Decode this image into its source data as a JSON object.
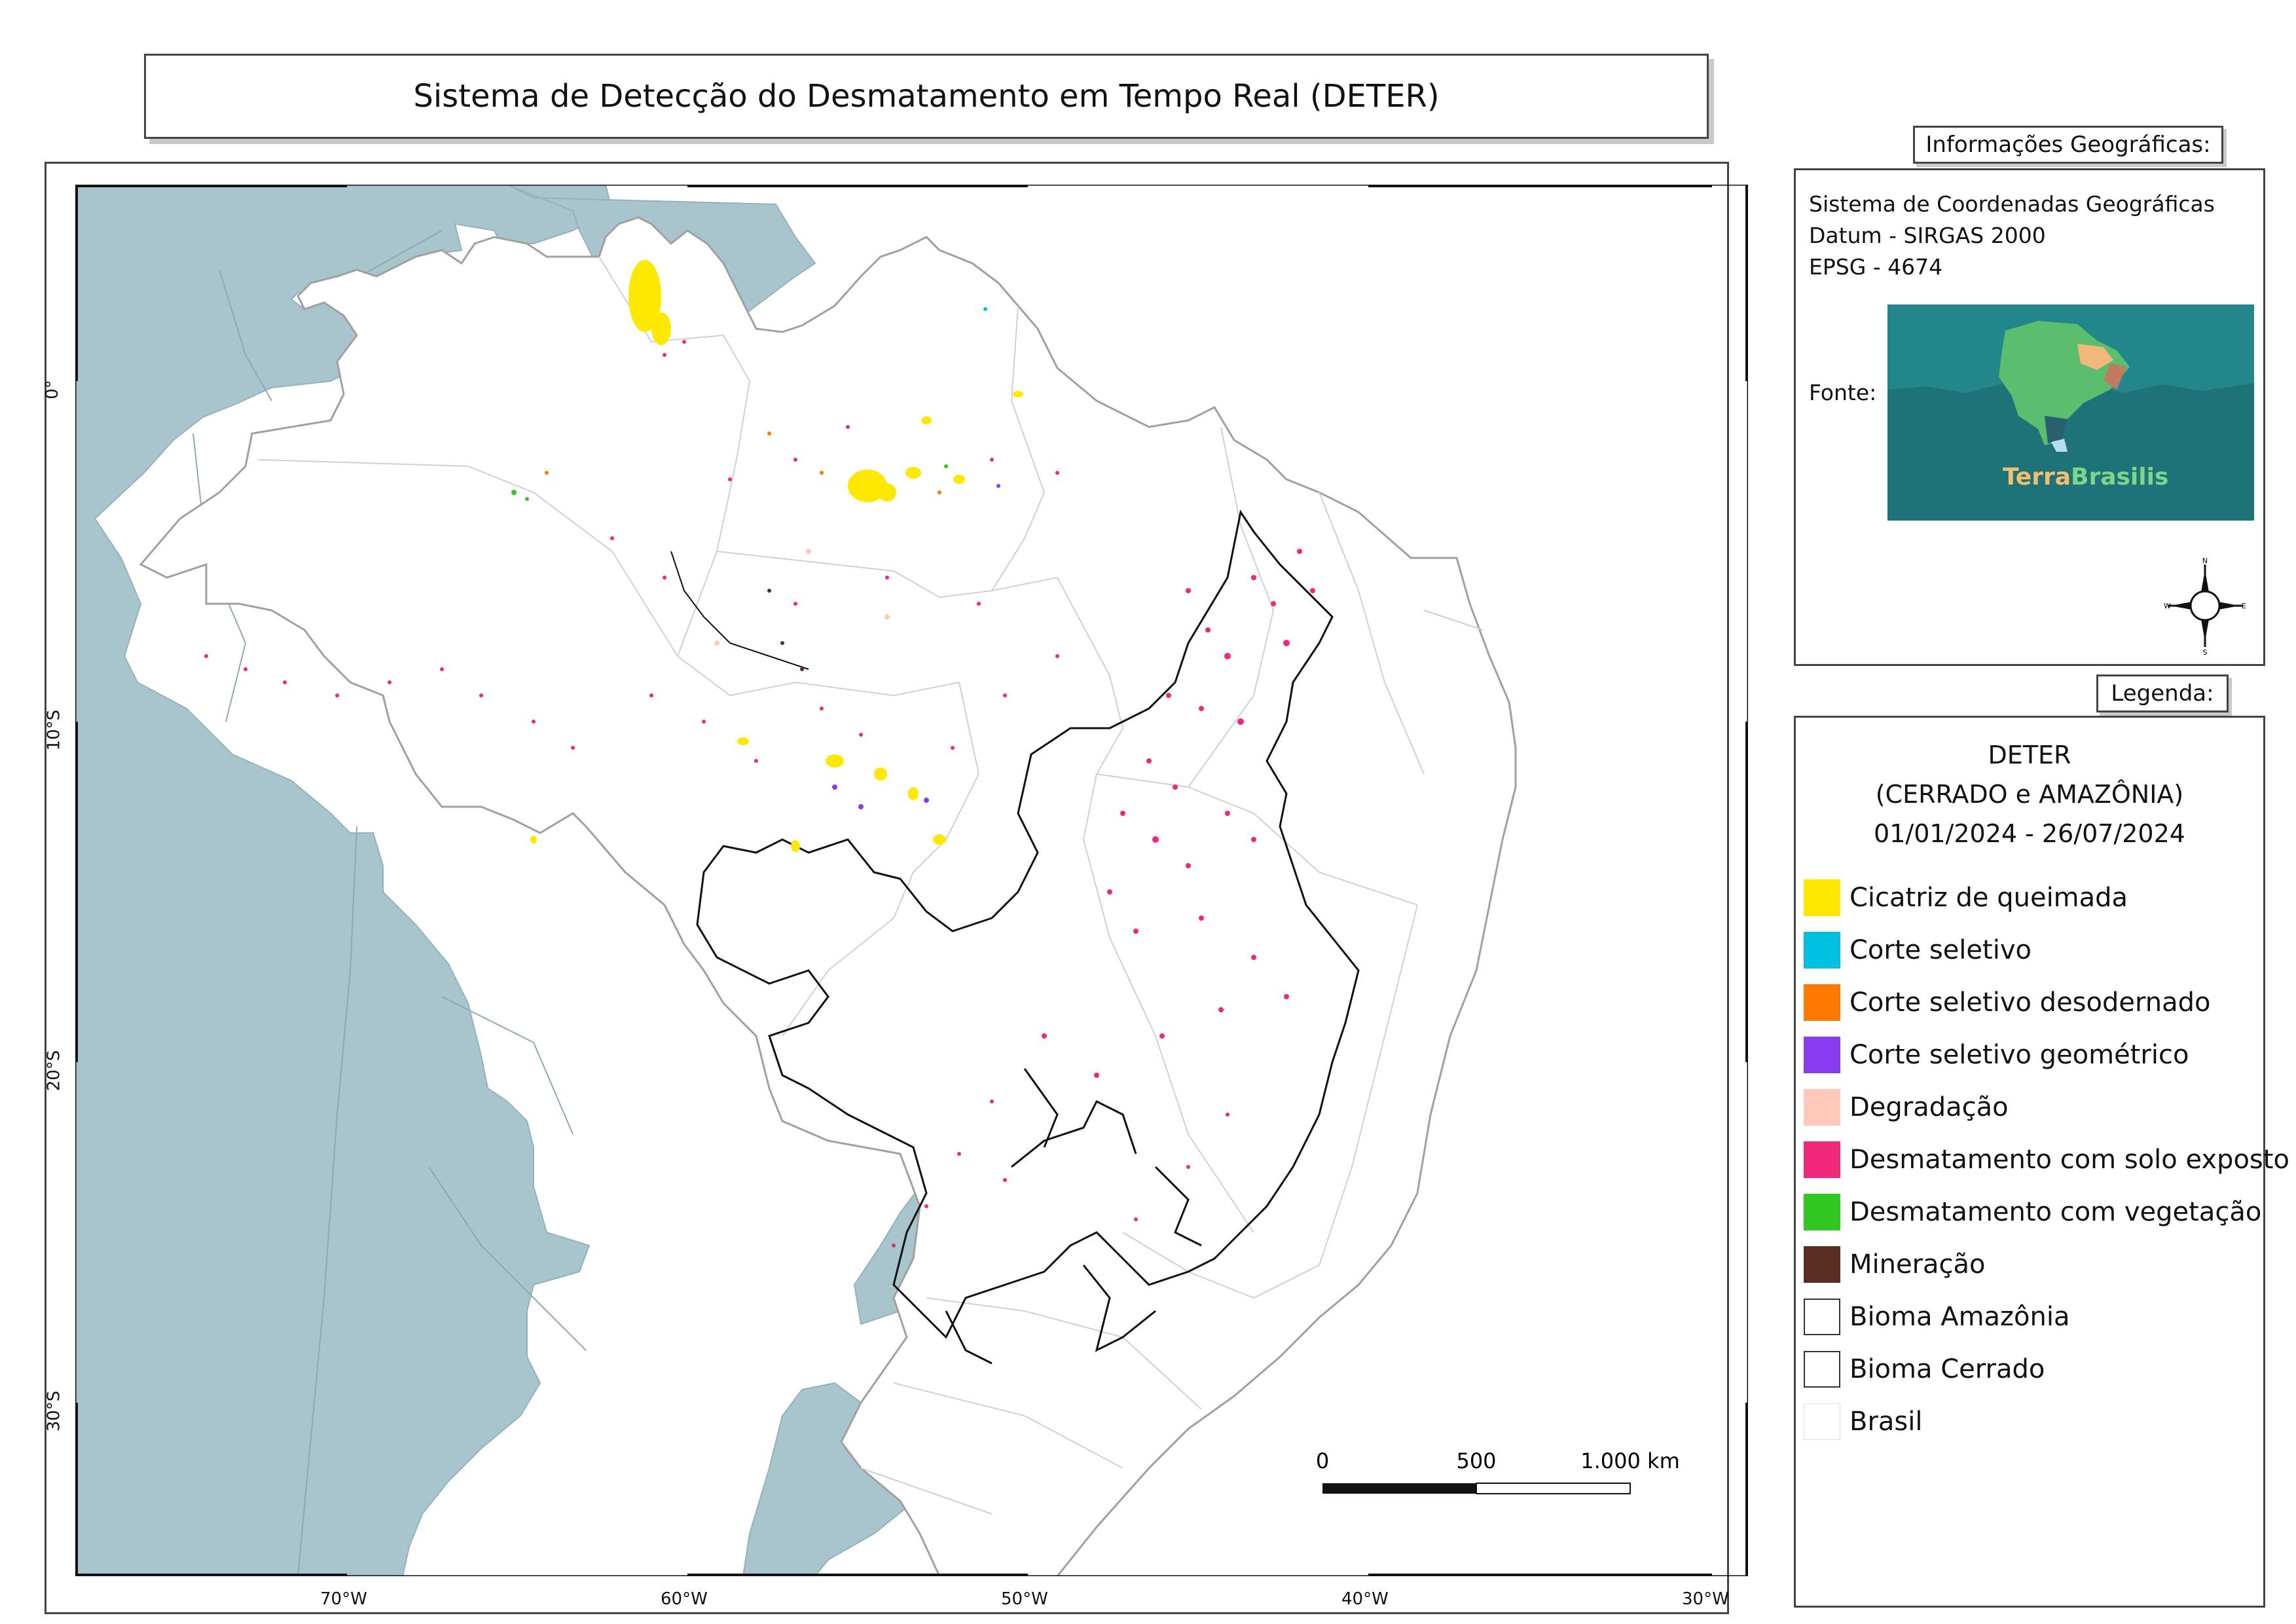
{
  "title": "Sistema de Detecção do Desmatamento em Tempo Real (DETER)",
  "info": {
    "header": "Informações Geográficas:",
    "lines": [
      "Sistema de Coordenadas Geográficas",
      "Datum - SIRGAS 2000",
      "EPSG - 4674"
    ],
    "source_label": "Fonte:",
    "logo_text_a": "Terra",
    "logo_text_b": "Brasilis",
    "compass": {
      "n": "N",
      "s": "S",
      "e": "E",
      "w": "W"
    }
  },
  "legend": {
    "header": "Legenda:",
    "title_lines": [
      "DETER",
      "(CERRADO e AMAZÔNIA)",
      "01/01/2024 - 26/07/2024"
    ],
    "items": [
      {
        "label": "Cicatriz de queimada",
        "color": "#ffe800",
        "outline": false
      },
      {
        "label": "Corte seletivo",
        "color": "#00c0e0",
        "outline": false
      },
      {
        "label": "Corte seletivo desodernado",
        "color": "#ff7800",
        "outline": false
      },
      {
        "label": "Corte seletivo geométrico",
        "color": "#8a3bf0",
        "outline": false
      },
      {
        "label": "Degradação",
        "color": "#ffc8b8",
        "outline": false
      },
      {
        "label": "Desmatamento com solo exposto",
        "color": "#f0287a",
        "outline": false
      },
      {
        "label": "Desmatamento com vegetação",
        "color": "#30c820",
        "outline": false
      },
      {
        "label": "Mineração",
        "color": "#5a2e22",
        "outline": false
      },
      {
        "label": "Bioma Amazônia",
        "color": "#ffffff",
        "outline": true
      },
      {
        "label": "Bioma Cerrado",
        "color": "#ffffff",
        "outline": true
      },
      {
        "label": "Brasil",
        "color": "#ffffff",
        "outline": "light"
      }
    ]
  },
  "map": {
    "ocean_color": "#ffffff",
    "neighbor_color": "#a8c4cc",
    "brazil_color": "#ffffff",
    "lon_ticks": [
      "70°W",
      "60°W",
      "50°W",
      "40°W",
      "30°W"
    ],
    "lat_ticks": [
      "0°",
      "10°S",
      "20°S",
      "30°S"
    ]
  },
  "scale_bar": {
    "labels": [
      "0",
      "500",
      "1.000 km"
    ]
  }
}
